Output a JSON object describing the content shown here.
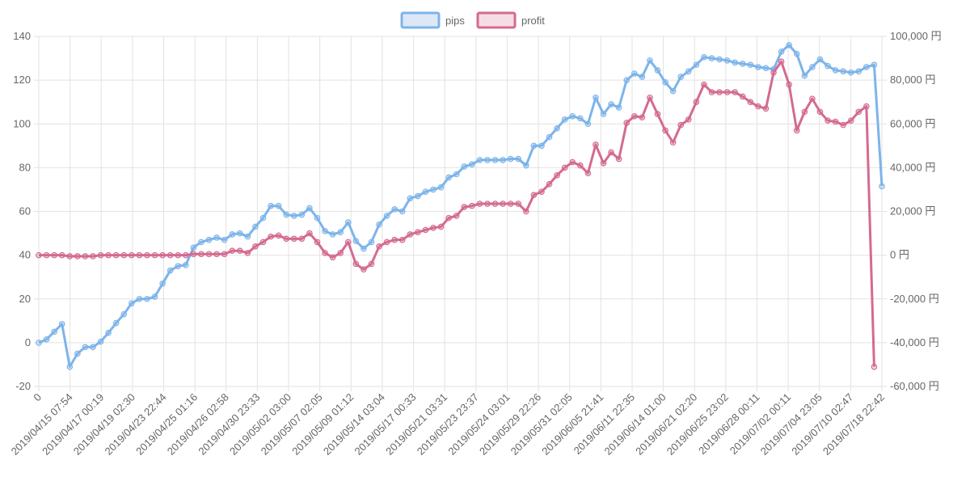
{
  "legend": [
    {
      "label": "pips",
      "stroke": "#7db4ea",
      "fill": "#dde8f6"
    },
    {
      "label": "profit",
      "stroke": "#d46a91",
      "fill": "#f6dde5"
    }
  ],
  "chart_data": {
    "type": "line",
    "left_axis": {
      "min": -20,
      "max": 140,
      "ticks": [
        "140",
        "120",
        "100",
        "80",
        "60",
        "40",
        "20",
        "0",
        "-20"
      ]
    },
    "right_axis": {
      "min": -60000,
      "max": 100000,
      "ticks": [
        "100,000 円",
        "80,000 円",
        "60,000 円",
        "40,000 円",
        "20,000 円",
        "0 円",
        "-20,000 円",
        "-40,000 円",
        "-60,000 円"
      ]
    },
    "x_labels": [
      "0",
      "2019/04/15 07:54",
      "2019/04/17 00:19",
      "2019/04/19 02:30",
      "2019/04/23 22:44",
      "2019/04/25 01:16",
      "2019/04/26 02:58",
      "2019/04/30 23:33",
      "2019/05/02 03:00",
      "2019/05/07 02:05",
      "2019/05/09 01:12",
      "2019/05/14 03:04",
      "2019/05/17 00:33",
      "2019/05/21 03:31",
      "2019/05/23 23:37",
      "2019/05/24 03:01",
      "2019/05/29 22:26",
      "2019/05/31 02:05",
      "2019/06/05 21:41",
      "2019/06/11 22:35",
      "2019/06/14 01:00",
      "2019/06/21 02:20",
      "2019/06/25 23:02",
      "2019/06/28 00:11",
      "2019/07/02 00:11",
      "2019/07/04 23:05",
      "2019/07/10 02:47",
      "2019/07/18 22:42"
    ],
    "grid": true,
    "legend_position": "top-center",
    "series": [
      {
        "name": "pips",
        "axis": "left",
        "color": "#7db4ea",
        "values": [
          0,
          1.5,
          5,
          8.5,
          -11,
          -5,
          -2,
          -2,
          0.5,
          4.5,
          9,
          13,
          18,
          20,
          20,
          21,
          27,
          33,
          35,
          35.5,
          43.5,
          46,
          47,
          48,
          47,
          49.5,
          50,
          48.5,
          53,
          57,
          62.5,
          62.5,
          58.5,
          58,
          58.5,
          61.5,
          57,
          51,
          49.5,
          50.5,
          55,
          46.5,
          43,
          46,
          54,
          58,
          61,
          60,
          66,
          67,
          69,
          70,
          71,
          75.5,
          77,
          80.5,
          81.5,
          83.5,
          83.5,
          83.5,
          83.5,
          84,
          84,
          81,
          90,
          90,
          94,
          98,
          102,
          103.5,
          102.5,
          100,
          112,
          104.5,
          109,
          107.5,
          120,
          123,
          121.5,
          129,
          124.5,
          119,
          115,
          121.5,
          124,
          127,
          130.5,
          130,
          129.5,
          129,
          128,
          127.5,
          127,
          126,
          125.5,
          125,
          133,
          136,
          132,
          122,
          126,
          129.5,
          126.5,
          124.5,
          124,
          123.5,
          124,
          126,
          127,
          71.5
        ]
      },
      {
        "name": "profit",
        "axis": "right",
        "color": "#d46a91",
        "values": [
          0,
          0,
          0,
          0,
          -500,
          -500,
          -500,
          -500,
          0,
          0,
          0,
          0,
          0,
          0,
          0,
          0,
          0,
          0,
          0,
          0,
          500,
          500,
          500,
          500,
          500,
          2000,
          2000,
          1000,
          4000,
          6000,
          8500,
          9000,
          7500,
          7500,
          7500,
          10000,
          6000,
          1000,
          -1000,
          1000,
          6000,
          -4000,
          -6500,
          -4000,
          4000,
          6000,
          7000,
          7000,
          9500,
          10500,
          11500,
          12500,
          13000,
          17000,
          18000,
          22000,
          22500,
          23500,
          23500,
          23500,
          23500,
          23500,
          23500,
          20000,
          27500,
          29000,
          32500,
          36500,
          40000,
          42500,
          41000,
          37500,
          50500,
          42000,
          47000,
          44000,
          60500,
          63500,
          63000,
          72000,
          64500,
          57000,
          51500,
          59500,
          62000,
          70000,
          78000,
          74500,
          74500,
          74500,
          74500,
          72500,
          70000,
          68000,
          67000,
          83500,
          88500,
          78000,
          57000,
          65500,
          71500,
          65500,
          61500,
          61000,
          59500,
          61500,
          65500,
          68000,
          -51000
        ]
      }
    ]
  }
}
